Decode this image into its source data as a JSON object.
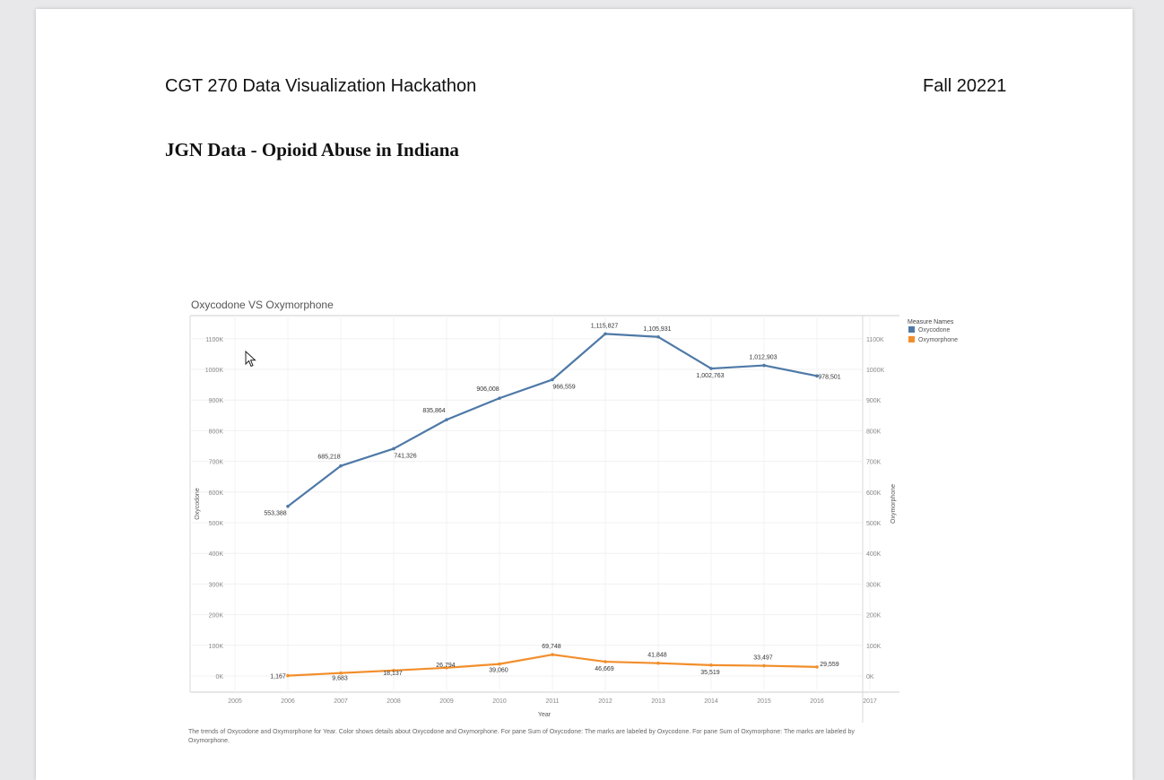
{
  "header": {
    "course": "CGT 270 Data Visualization Hackathon",
    "term": "Fall 20221",
    "title": "JGN Data - Opioid Abuse in Indiana"
  },
  "chart_data": {
    "type": "line",
    "title": "Oxycodone VS Oxymorphone",
    "xlabel": "Year",
    "ylabel_left": "Oxycodone",
    "ylabel_right": "Oxymorphone",
    "x_ticks": [
      "2005",
      "2006",
      "2007",
      "2008",
      "2009",
      "2010",
      "2011",
      "2012",
      "2013",
      "2014",
      "2015",
      "2016",
      "2017"
    ],
    "y_ticks": [
      "0K",
      "100K",
      "200K",
      "300K",
      "400K",
      "500K",
      "600K",
      "700K",
      "800K",
      "900K",
      "1000K",
      "1100K"
    ],
    "xlim": [
      2005,
      2017
    ],
    "ylim": [
      0,
      1150000
    ],
    "legend_title": "Measure Names",
    "series": [
      {
        "name": "Oxycodone",
        "color": "#4e79a7",
        "x": [
          2006,
          2007,
          2008,
          2009,
          2010,
          2011,
          2012,
          2013,
          2014,
          2015,
          2016
        ],
        "values": [
          553388,
          685218,
          741326,
          835864,
          906008,
          966559,
          1115827,
          1105931,
          1002763,
          1012903,
          978501
        ],
        "labels": [
          "553,388",
          "685,218",
          "741,326",
          "835,864",
          "906,008",
          "966,559",
          "1,115,827",
          "1,105,931",
          "1,002,763",
          "1,012,903",
          "978,501"
        ]
      },
      {
        "name": "Oxymorphone",
        "color": "#f28e2b",
        "x": [
          2006,
          2007,
          2008,
          2009,
          2010,
          2011,
          2012,
          2013,
          2014,
          2015,
          2016
        ],
        "values": [
          1167,
          9683,
          18137,
          26794,
          39060,
          69748,
          46669,
          41848,
          35519,
          33497,
          29559
        ],
        "labels": [
          "1,167",
          "9,683",
          "18,137",
          "26,794",
          "39,060",
          "69,748",
          "46,669",
          "41,848",
          "35,519",
          "33,497",
          "29,559"
        ]
      }
    ],
    "caption": "The trends of Oxycodone and Oxymorphone for Year.  Color shows details about Oxycodone and Oxymorphone.  For pane Sum of Oxycodone:  The marks are labeled by Oxycodone.  For pane Sum of Oxymorphone:  The marks are labeled by Oxymorphone."
  }
}
